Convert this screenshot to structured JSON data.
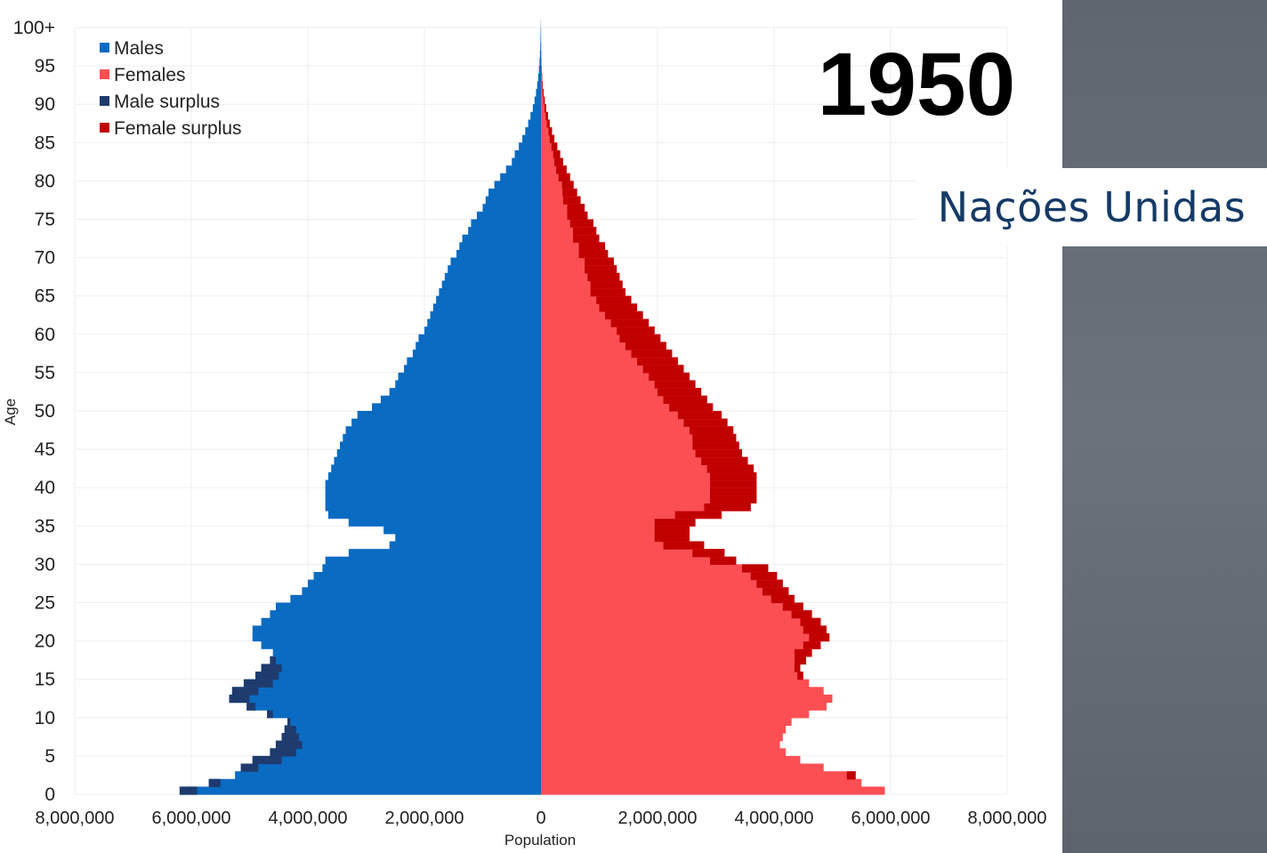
{
  "overlay": {
    "year": "1950",
    "source_label": "Nações Unidas"
  },
  "chart_data": {
    "type": "bar",
    "orientation": "horizontal",
    "subtype": "population-pyramid",
    "title": "",
    "xlabel": "Population",
    "ylabel": "Age",
    "xlim": [
      -8000000,
      8000000
    ],
    "ylim": [
      0,
      100
    ],
    "x_ticks": [
      "8,000,000",
      "6,000,000",
      "4,000,000",
      "2,000,000",
      "0",
      "2,000,000",
      "4,000,000",
      "6,000,000",
      "8,000,000"
    ],
    "y_ticks": [
      "0",
      "5",
      "10",
      "15",
      "20",
      "25",
      "30",
      "35",
      "40",
      "45",
      "50",
      "55",
      "60",
      "65",
      "70",
      "75",
      "80",
      "85",
      "90",
      "95",
      "100+"
    ],
    "grid": true,
    "legend_position": "top-left",
    "legend": [
      {
        "name": "Males",
        "color": "#0a6bc2"
      },
      {
        "name": "Females",
        "color": "#fb4f54"
      },
      {
        "name": "Male surplus",
        "color": "#1f3b6e"
      },
      {
        "name": "Female surplus",
        "color": "#c10000"
      }
    ],
    "colors": {
      "males": "#0a6bc2",
      "females": "#fb4f54",
      "male_surplus": "#1f3b6e",
      "female_surplus": "#c10000",
      "grid": "#eeeeee"
    },
    "age_groups": [
      "0",
      "1",
      "2",
      "3",
      "4",
      "5",
      "6",
      "7",
      "8",
      "9",
      "10",
      "11",
      "12",
      "13",
      "14",
      "15",
      "16",
      "17",
      "18",
      "19",
      "20",
      "21",
      "22",
      "23",
      "24",
      "25",
      "26",
      "27",
      "28",
      "29",
      "30",
      "31",
      "32",
      "33",
      "34",
      "35",
      "36",
      "37",
      "38",
      "39",
      "40",
      "41",
      "42",
      "43",
      "44",
      "45",
      "46",
      "47",
      "48",
      "49",
      "50",
      "51",
      "52",
      "53",
      "54",
      "55",
      "56",
      "57",
      "58",
      "59",
      "60",
      "61",
      "62",
      "63",
      "64",
      "65",
      "66",
      "67",
      "68",
      "69",
      "70",
      "71",
      "72",
      "73",
      "74",
      "75",
      "76",
      "77",
      "78",
      "79",
      "80",
      "81",
      "82",
      "83",
      "84",
      "85",
      "86",
      "87",
      "88",
      "89",
      "90",
      "91",
      "92",
      "93",
      "94",
      "95",
      "96",
      "97",
      "98",
      "99",
      "100+"
    ],
    "series": [
      {
        "name": "Males",
        "values": [
          6200000,
          5700000,
          5250000,
          5150000,
          4950000,
          4650000,
          4550000,
          4450000,
          4400000,
          4350000,
          4700000,
          5050000,
          5350000,
          5300000,
          5100000,
          4900000,
          4800000,
          4650000,
          4600000,
          4800000,
          4950000,
          4950000,
          4800000,
          4650000,
          4550000,
          4300000,
          4100000,
          4000000,
          3900000,
          3750000,
          3700000,
          3300000,
          2600000,
          2500000,
          2700000,
          3300000,
          3650000,
          3700000,
          3700000,
          3700000,
          3700000,
          3650000,
          3600000,
          3550000,
          3500000,
          3450000,
          3400000,
          3350000,
          3250000,
          3150000,
          2900000,
          2750000,
          2600000,
          2500000,
          2450000,
          2350000,
          2300000,
          2200000,
          2150000,
          2100000,
          2000000,
          1950000,
          1900000,
          1850000,
          1800000,
          1750000,
          1700000,
          1650000,
          1600000,
          1550000,
          1450000,
          1400000,
          1350000,
          1250000,
          1200000,
          1100000,
          1000000,
          950000,
          900000,
          800000,
          700000,
          600000,
          500000,
          450000,
          380000,
          320000,
          270000,
          220000,
          180000,
          140000,
          110000,
          85000,
          65000,
          48000,
          35000,
          25000,
          18000,
          12000,
          8000,
          5000,
          3000
        ]
      },
      {
        "name": "Females",
        "values": [
          5900000,
          5500000,
          5400000,
          4850000,
          4450000,
          4200000,
          4100000,
          4150000,
          4200000,
          4300000,
          4600000,
          4900000,
          5000000,
          4850000,
          4600000,
          4500000,
          4450000,
          4550000,
          4650000,
          4800000,
          4950000,
          4900000,
          4800000,
          4650000,
          4500000,
          4350000,
          4250000,
          4150000,
          4050000,
          3900000,
          3350000,
          3150000,
          2800000,
          2550000,
          2550000,
          2650000,
          3100000,
          3600000,
          3700000,
          3700000,
          3700000,
          3700000,
          3650000,
          3550000,
          3450000,
          3400000,
          3350000,
          3300000,
          3200000,
          3100000,
          2950000,
          2850000,
          2750000,
          2650000,
          2550000,
          2450000,
          2350000,
          2250000,
          2150000,
          2050000,
          1950000,
          1850000,
          1750000,
          1650000,
          1550000,
          1450000,
          1400000,
          1350000,
          1300000,
          1250000,
          1150000,
          1100000,
          1000000,
          950000,
          900000,
          800000,
          750000,
          680000,
          620000,
          560000,
          500000,
          440000,
          380000,
          330000,
          280000,
          230000,
          190000,
          150000,
          120000,
          90000,
          65000,
          45000,
          30000,
          20000,
          13000,
          8000,
          5000,
          3000,
          2000,
          1200,
          700
        ]
      },
      {
        "name": "Female surplus",
        "values": [
          0,
          0,
          150000,
          0,
          0,
          0,
          0,
          0,
          0,
          0,
          0,
          0,
          0,
          0,
          0,
          100000,
          100000,
          200000,
          300000,
          300000,
          350000,
          400000,
          350000,
          350000,
          350000,
          400000,
          450000,
          450000,
          450000,
          450000,
          450000,
          550000,
          700000,
          600000,
          600000,
          700000,
          800000,
          800000,
          800000,
          800000,
          800000,
          800000,
          800000,
          800000,
          800000,
          800000,
          750000,
          750000,
          750000,
          750000,
          750000,
          750000,
          750000,
          700000,
          700000,
          700000,
          700000,
          700000,
          700000,
          700000,
          650000,
          650000,
          650000,
          650000,
          600000,
          600000,
          550000,
          550000,
          550000,
          500000,
          500000,
          450000,
          450000,
          400000,
          400000,
          350000,
          300000,
          300000,
          250000,
          200000,
          200000,
          180000,
          150000,
          120000,
          100000,
          80000,
          60000,
          50000,
          40000,
          30000,
          20000,
          15000,
          10000,
          8000,
          5000,
          4000,
          3000,
          2000,
          1000,
          800,
          500
        ]
      },
      {
        "name": "Male surplus",
        "values": [
          300000,
          200000,
          0,
          300000,
          500000,
          450000,
          450000,
          300000,
          200000,
          50000,
          100000,
          150000,
          350000,
          450000,
          500000,
          400000,
          350000,
          100000,
          0,
          0,
          0,
          0,
          0,
          0,
          0,
          0,
          0,
          0,
          0,
          0,
          0,
          0,
          0,
          0,
          0,
          0,
          0,
          0,
          0,
          0,
          0,
          0,
          0,
          0,
          0,
          0,
          0,
          0,
          0,
          0,
          0,
          0,
          0,
          0,
          0,
          0,
          0,
          0,
          0,
          0,
          0,
          0,
          0,
          0,
          0,
          0,
          0,
          0,
          0,
          0,
          0,
          0,
          0,
          0,
          0,
          0,
          0,
          0,
          0,
          0,
          0,
          0,
          0,
          0,
          0,
          0,
          0,
          0,
          0,
          0,
          0,
          0,
          0,
          0,
          0,
          0,
          0,
          0,
          0,
          0,
          0
        ]
      }
    ]
  }
}
